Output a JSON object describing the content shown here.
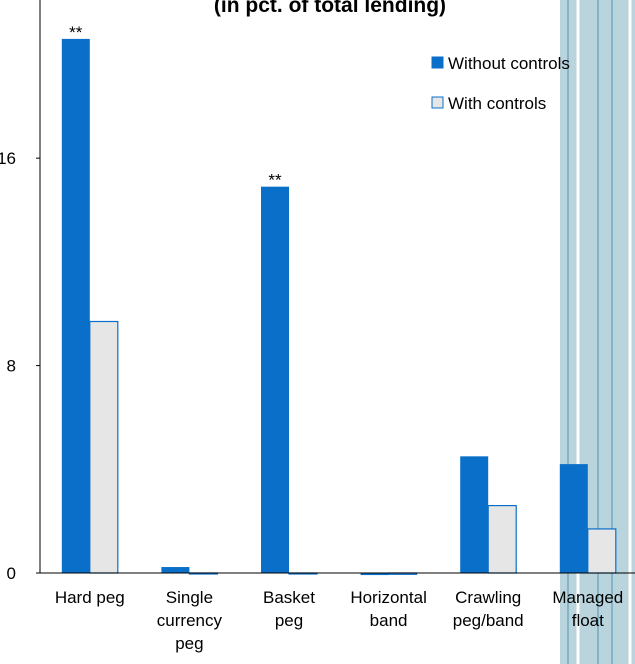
{
  "chart_data": {
    "type": "bar",
    "title": "(in pct. of total lending)",
    "categories": [
      "Hard peg",
      "Single\ncurrency\npeg",
      "Basket\npeg",
      "Horizontal\nband",
      "Crawling\npeg/band",
      "Managed\nfloat"
    ],
    "series": [
      {
        "name": "Without controls",
        "color": "#0a6fc9",
        "values": [
          20.6,
          0.23,
          14.9,
          -0.08,
          4.5,
          4.2
        ],
        "significance": [
          "**",
          null,
          "**",
          null,
          null,
          null
        ]
      },
      {
        "name": "With controls",
        "color": "#e6e6e6",
        "values": [
          9.7,
          -0.03,
          -0.03,
          -0.05,
          2.6,
          1.7
        ]
      }
    ],
    "ylim": [
      0,
      22.1
    ],
    "yticks": [
      0,
      8,
      16
    ]
  }
}
